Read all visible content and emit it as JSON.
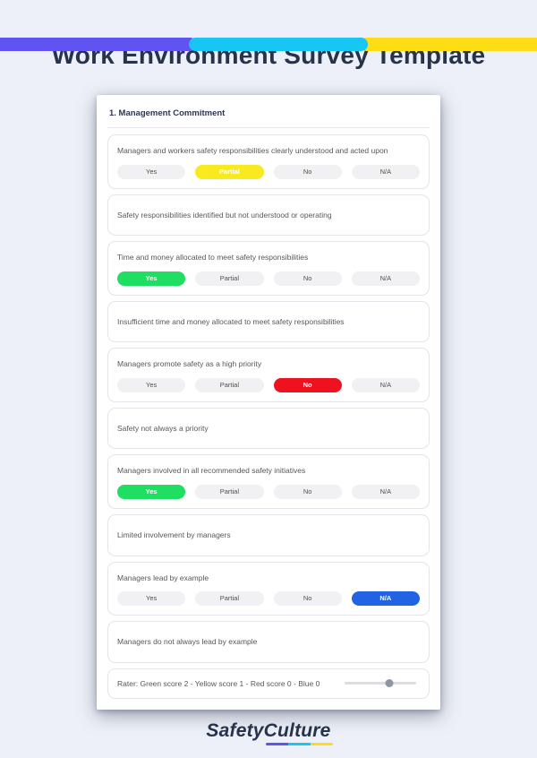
{
  "accent_bar": {
    "colors": [
      "#6153f2",
      "#17c6f2",
      "#ffdd15"
    ]
  },
  "page": {
    "title": "Work Environment Survey Template",
    "background": "#edf0f8"
  },
  "card": {
    "section_title": "1. Management Commitment",
    "options_default": [
      "Yes",
      "Partial",
      "No",
      "N/A"
    ],
    "questions": [
      {
        "text": "Managers and workers safety responsibilities clearly understood and acted upon",
        "has_options": true,
        "selected": "Partial",
        "selected_color": "#f9ea1f"
      },
      {
        "text": "Safety responsibilities identified but not understood or operating",
        "has_options": false
      },
      {
        "text": "Time and money allocated to meet safety responsibilities",
        "has_options": true,
        "selected": "Yes",
        "selected_color": "#1fdf62"
      },
      {
        "text": "Insufficient time and money allocated to meet safety responsibilities",
        "has_options": false
      },
      {
        "text": "Managers promote safety as a high priority",
        "has_options": true,
        "selected": "No",
        "selected_color": "#ee1220"
      },
      {
        "text": "Safety not always a priority",
        "has_options": false
      },
      {
        "text": "Managers involved in all recommended safety initiatives",
        "has_options": true,
        "selected": "Yes",
        "selected_color": "#1fdf62"
      },
      {
        "text": "Limited involvement by managers",
        "has_options": false
      },
      {
        "text": "Managers lead by example",
        "has_options": true,
        "selected": "N/A",
        "selected_color": "#2263e4"
      },
      {
        "text": "Managers do not always lead by example",
        "has_options": false
      }
    ],
    "rater": {
      "text": "Rater: Green score 2 - Yellow score 1 - Red score 0 - Blue 0",
      "slider_percent": 62
    }
  },
  "footer": {
    "brand_part1": "Safety",
    "brand_part2": "Culture"
  }
}
